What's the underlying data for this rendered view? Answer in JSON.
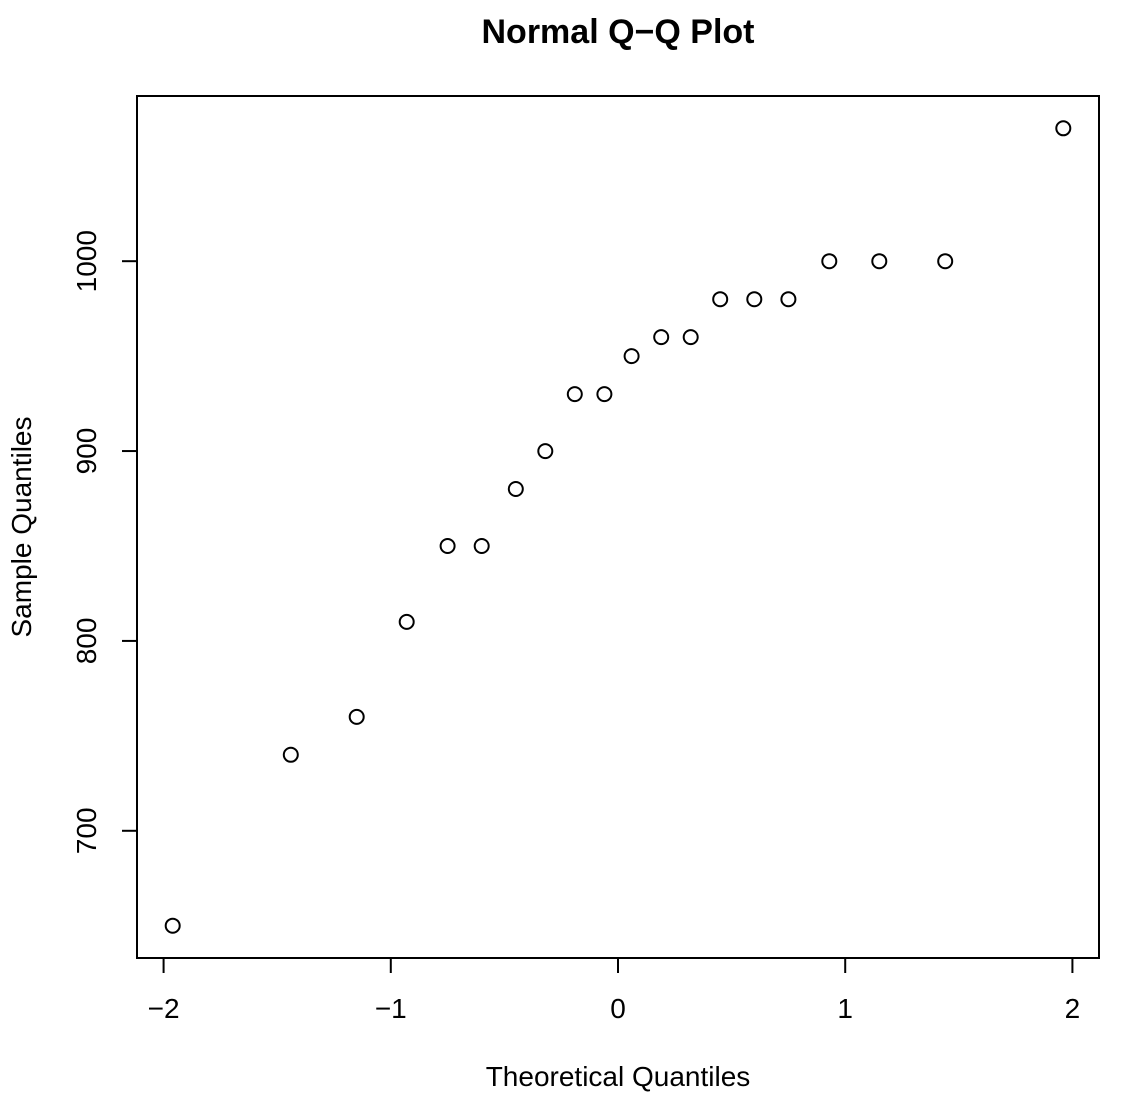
{
  "figure": {
    "background_color": "#ffffff",
    "foreground_color": "#000000"
  },
  "chart_data": {
    "type": "scatter",
    "title": "Normal Q−Q Plot",
    "xlabel": "Theoretical Quantiles",
    "ylabel": "Sample Quantiles",
    "x": [
      -1.96,
      -1.44,
      -1.15,
      -0.93,
      -0.75,
      -0.6,
      -0.45,
      -0.32,
      -0.19,
      -0.06,
      0.06,
      0.19,
      0.32,
      0.45,
      0.6,
      0.75,
      0.93,
      1.15,
      1.44,
      1.96
    ],
    "y": [
      650,
      740,
      760,
      810,
      850,
      850,
      880,
      900,
      930,
      930,
      950,
      960,
      960,
      980,
      980,
      980,
      1000,
      1000,
      1000,
      1070
    ],
    "xlim": [
      -2.117,
      2.117
    ],
    "ylim": [
      633,
      1087
    ],
    "x_ticks": [
      -2,
      -1,
      0,
      1,
      2
    ],
    "x_tick_labels": [
      "−2",
      "−1",
      "0",
      "1",
      "2"
    ],
    "y_ticks": [
      700,
      800,
      900,
      1000
    ],
    "y_tick_labels": [
      "700",
      "800",
      "900",
      "1000"
    ],
    "grid": false,
    "legend": null,
    "marker": "open-circle",
    "marker_color": "#000000"
  }
}
